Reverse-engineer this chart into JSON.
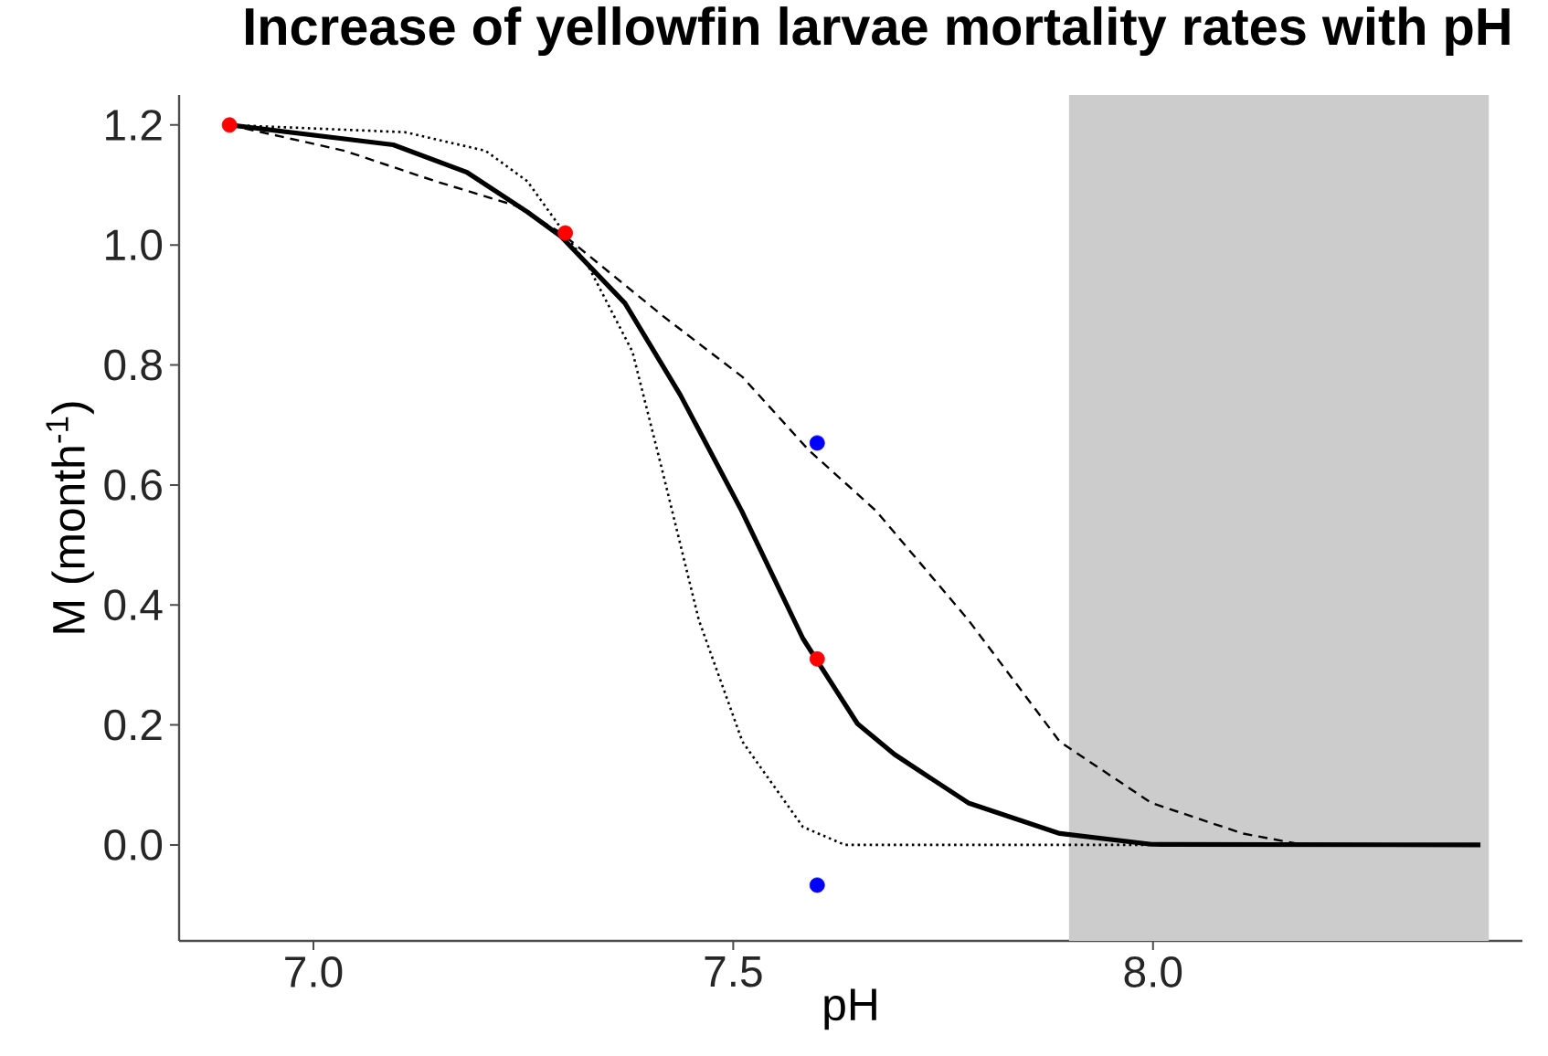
{
  "chart_data": {
    "type": "line",
    "title": "Increase of yellowfin larvae mortality rates with pH",
    "xlabel": "pH",
    "ylabel": "M (month$^{-1}$)",
    "xlim": [
      6.84,
      8.44
    ],
    "ylim": [
      -0.16,
      1.25
    ],
    "xticks": [
      {
        "value": 7.0,
        "label": "7.0"
      },
      7.5,
      {
        "value": 8.0,
        "label": "8.0"
      }
    ],
    "yticks": [
      {
        "value": 0.0,
        "label": "0.0"
      },
      0.2,
      0.4,
      0.6,
      0.8,
      {
        "value": 1.0,
        "label": "1.0"
      },
      1.2
    ],
    "bands": [
      {
        "axis": "x",
        "from": 7.9,
        "to": 8.4,
        "color": "#cccccc"
      }
    ],
    "series": [
      {
        "line_style": "dotted",
        "color": "#000000",
        "x": [
          6.9,
          7.109,
          7.205,
          7.255,
          7.328,
          7.38,
          7.415,
          7.459,
          7.511,
          7.583,
          7.633,
          8.0
        ],
        "values": [
          1.2,
          1.188,
          1.157,
          1.106,
          0.963,
          0.822,
          0.627,
          0.375,
          0.172,
          0.03,
          0.0,
          0.0
        ]
      },
      {
        "line_style": "dashed",
        "color": "#000000",
        "x": [
          6.9,
          7.037,
          7.146,
          7.24,
          7.295,
          7.415,
          7.511,
          7.59,
          7.67,
          7.78,
          7.889,
          7.998,
          8.107,
          8.18
        ],
        "values": [
          1.2,
          1.157,
          1.106,
          1.066,
          1.02,
          0.883,
          0.78,
          0.658,
          0.557,
          0.375,
          0.172,
          0.07,
          0.019,
          0.0
        ]
      },
      {
        "line_style": "solid",
        "color": "#000000",
        "x": [
          6.9,
          7.095,
          7.183,
          7.255,
          7.295,
          7.371,
          7.437,
          7.51,
          7.583,
          7.648,
          7.692,
          7.78,
          7.889,
          7.998,
          8.39
        ],
        "values": [
          1.2,
          1.167,
          1.121,
          1.055,
          1.014,
          0.903,
          0.75,
          0.557,
          0.344,
          0.202,
          0.151,
          0.07,
          0.019,
          0.001,
          0.0
        ]
      },
      {
        "type": "scatter",
        "marker": "circle",
        "color": "#ff0000",
        "x": [
          6.9,
          7.3,
          7.6
        ],
        "values": [
          1.2,
          1.02,
          0.31
        ]
      },
      {
        "type": "scatter",
        "marker": "circle",
        "color": "#0000ff",
        "x": [
          7.6,
          7.6
        ],
        "values": [
          0.67,
          -0.067
        ]
      }
    ]
  }
}
